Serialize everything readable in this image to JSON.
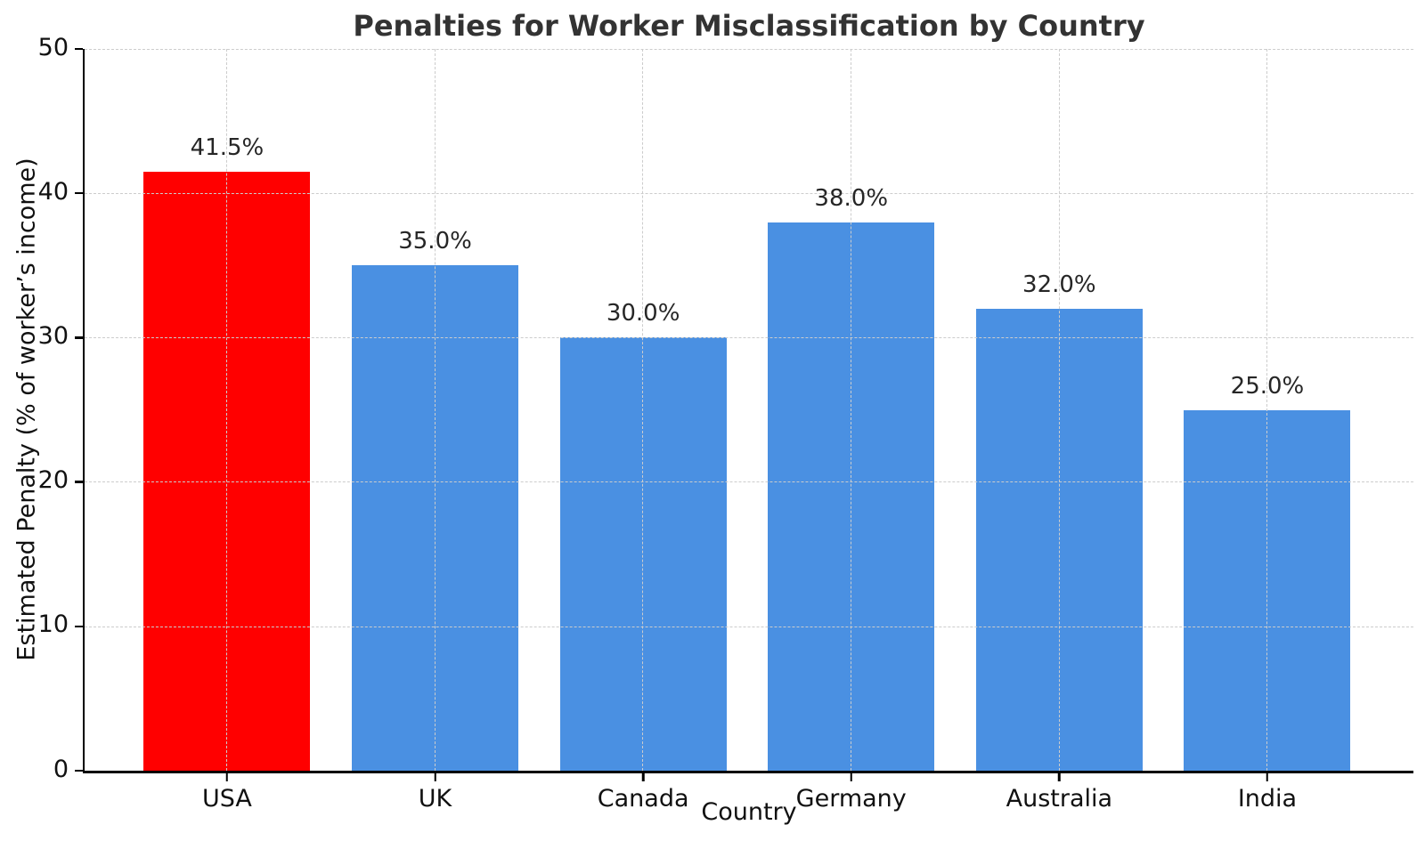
{
  "chart_data": {
    "type": "bar",
    "title": "Penalties for Worker Misclassification by Country",
    "xlabel": "Country",
    "ylabel": "Estimated Penalty (% of worker’s income)",
    "categories": [
      "USA",
      "UK",
      "Canada",
      "Germany",
      "Australia",
      "India"
    ],
    "values": [
      41.5,
      35.0,
      30.0,
      38.0,
      32.0,
      25.0
    ],
    "value_labels": [
      "41.5%",
      "35.0%",
      "30.0%",
      "38.0%",
      "32.0%",
      "25.0%"
    ],
    "bar_colors": [
      "#ff0000",
      "#4a90e2",
      "#4a90e2",
      "#4a90e2",
      "#4a90e2",
      "#4a90e2"
    ],
    "highlight_category": "USA",
    "highlight_color": "#ff0000",
    "default_bar_color": "#4a90e2",
    "ylim": [
      0,
      50
    ],
    "yticks": [
      0,
      10,
      20,
      30,
      40,
      50
    ],
    "grid": "dashed gridlines on both axes, drawn above bars",
    "grid_color": "#cccccc",
    "legend": "none"
  }
}
